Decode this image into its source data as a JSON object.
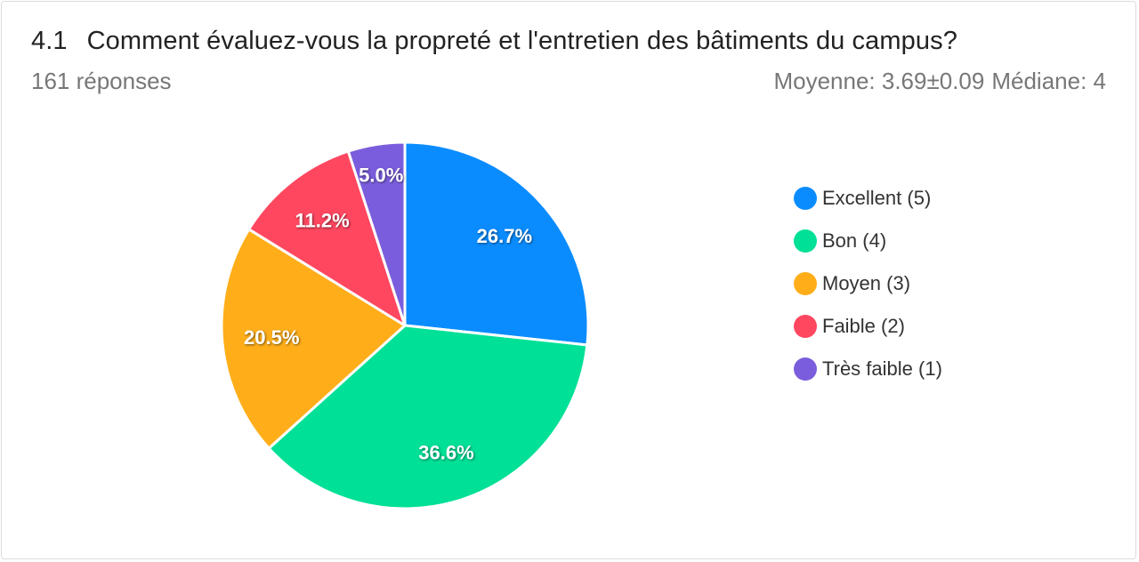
{
  "header": {
    "number": "4.1",
    "question": "Comment évaluez-vous la propreté et l'entretien des bâtiments du campus?",
    "responses": "161 réponses",
    "mean": "Moyenne: 3.69±0.09",
    "median": "Médiane: 4"
  },
  "chart_data": {
    "type": "pie",
    "title": "Comment évaluez-vous la propreté et l'entretien des bâtiments du campus?",
    "categories": [
      "Excellent (5)",
      "Bon (4)",
      "Moyen (3)",
      "Faible (2)",
      "Très faible (1)"
    ],
    "values": [
      26.7,
      36.6,
      20.5,
      11.2,
      5.0
    ],
    "labels": [
      "26.7%",
      "36.6%",
      "20.5%",
      "11.2%",
      "5.0%"
    ],
    "colors": [
      "#0a8cff",
      "#00e096",
      "#ffae1a",
      "#ff4760",
      "#7a5ddc"
    ],
    "legend": "right"
  }
}
